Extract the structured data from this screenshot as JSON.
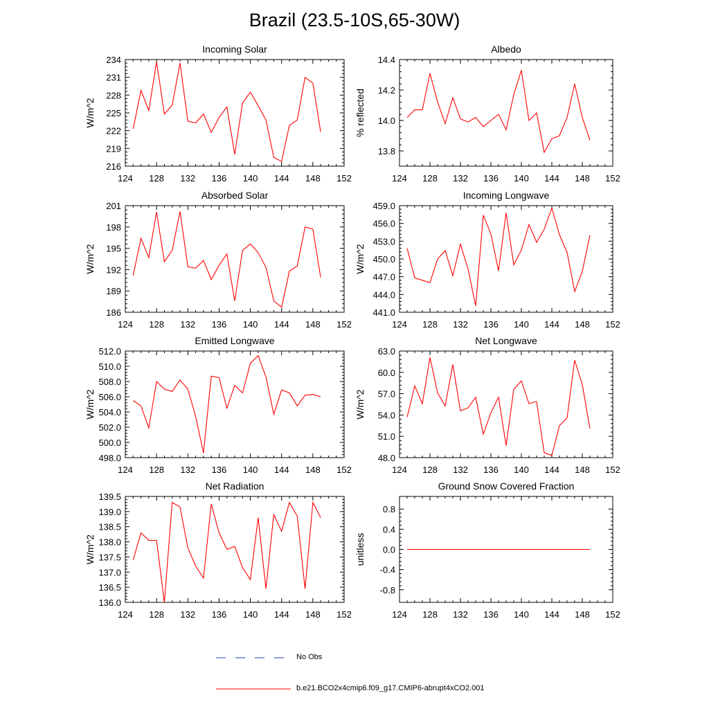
{
  "title": "Brazil (23.5-10S,65-30W)",
  "colors": {
    "model": "#ff0000",
    "obs": "#1f3fbf",
    "axis": "#000000"
  },
  "legend": {
    "obs_label": "No Obs",
    "model_label": "b.e21.BCO2x4cmip6.f09_g17.CMIP6-abrupt4xCO2.001"
  },
  "chart_data": [
    {
      "type": "line",
      "name": "incoming-solar",
      "title": "Incoming Solar",
      "ylabel": "W/m^2",
      "xlim": [
        124,
        152
      ],
      "xticks": [
        124,
        128,
        132,
        136,
        140,
        144,
        148,
        152
      ],
      "ylim": [
        216,
        234
      ],
      "yticks": [
        216,
        219,
        222,
        225,
        228,
        231,
        234
      ],
      "ydec": 0,
      "x": [
        125,
        126,
        127,
        128,
        129,
        130,
        131,
        132,
        133,
        134,
        135,
        136,
        137,
        138,
        139,
        140,
        141,
        142,
        143,
        144,
        145,
        146,
        147,
        148,
        149
      ],
      "values": [
        222.3,
        228.8,
        225.4,
        233.6,
        224.8,
        226.3,
        233.4,
        223.6,
        223.3,
        224.8,
        221.7,
        224.2,
        226.0,
        218.0,
        226.7,
        228.5,
        226.2,
        223.8,
        217.5,
        216.8,
        222.9,
        223.8,
        231.0,
        230.0,
        221.8
      ]
    },
    {
      "type": "line",
      "name": "albedo",
      "title": "Albedo",
      "ylabel": "% reflected",
      "xlim": [
        124,
        152
      ],
      "xticks": [
        124,
        128,
        132,
        136,
        140,
        144,
        148,
        152
      ],
      "ylim": [
        13.7,
        14.4
      ],
      "yticks": [
        13.8,
        14.0,
        14.2,
        14.4
      ],
      "ydec": 1,
      "x": [
        125,
        126,
        127,
        128,
        129,
        130,
        131,
        132,
        133,
        134,
        135,
        136,
        137,
        138,
        139,
        140,
        141,
        142,
        143,
        144,
        145,
        146,
        147,
        148,
        149
      ],
      "values": [
        14.02,
        14.07,
        14.07,
        14.31,
        14.12,
        13.98,
        14.15,
        14.01,
        13.99,
        14.02,
        13.96,
        14.0,
        14.04,
        13.94,
        14.17,
        14.33,
        14.0,
        14.05,
        13.79,
        13.88,
        13.9,
        14.02,
        14.24,
        14.02,
        13.87
      ]
    },
    {
      "type": "line",
      "name": "absorbed-solar",
      "title": "Absorbed Solar",
      "ylabel": "W/m^2",
      "xlim": [
        124,
        152
      ],
      "xticks": [
        124,
        128,
        132,
        136,
        140,
        144,
        148,
        152
      ],
      "ylim": [
        186,
        201
      ],
      "yticks": [
        186,
        189,
        192,
        195,
        198,
        201
      ],
      "ydec": 0,
      "x": [
        125,
        126,
        127,
        128,
        129,
        130,
        131,
        132,
        133,
        134,
        135,
        136,
        137,
        138,
        139,
        140,
        141,
        142,
        143,
        144,
        145,
        146,
        147,
        148,
        149
      ],
      "values": [
        191.2,
        196.4,
        193.7,
        200.1,
        193.1,
        194.7,
        200.2,
        192.4,
        192.2,
        193.3,
        190.6,
        192.6,
        194.2,
        187.6,
        194.7,
        195.6,
        194.4,
        192.3,
        187.6,
        186.7,
        191.8,
        192.5,
        198.0,
        197.7,
        190.9
      ]
    },
    {
      "type": "line",
      "name": "incoming-longwave",
      "title": "Incoming Longwave",
      "ylabel": "W/m^2",
      "xlim": [
        124,
        152
      ],
      "xticks": [
        124,
        128,
        132,
        136,
        140,
        144,
        148,
        152
      ],
      "ylim": [
        441,
        459
      ],
      "yticks": [
        441,
        444,
        447,
        450,
        453,
        456,
        459
      ],
      "ydec": 1,
      "x": [
        125,
        126,
        127,
        128,
        129,
        130,
        131,
        132,
        133,
        134,
        135,
        136,
        137,
        138,
        139,
        140,
        141,
        142,
        143,
        144,
        145,
        146,
        147,
        148,
        149
      ],
      "values": [
        451.8,
        446.8,
        446.4,
        446.0,
        450.0,
        451.4,
        447.2,
        452.5,
        448.3,
        442.1,
        457.4,
        454.2,
        448.0,
        457.8,
        449.0,
        451.5,
        455.8,
        452.8,
        455.0,
        458.6,
        454.1,
        451.1,
        444.5,
        447.9,
        454.0
      ]
    },
    {
      "type": "line",
      "name": "emitted-longwave",
      "title": "Emitted Longwave",
      "ylabel": "W/m^2",
      "xlim": [
        124,
        152
      ],
      "xticks": [
        124,
        128,
        132,
        136,
        140,
        144,
        148,
        152
      ],
      "ylim": [
        498,
        512
      ],
      "yticks": [
        498,
        500,
        502,
        504,
        506,
        508,
        510,
        512
      ],
      "ydec": 1,
      "x": [
        125,
        126,
        127,
        128,
        129,
        130,
        131,
        132,
        133,
        134,
        135,
        136,
        137,
        138,
        139,
        140,
        141,
        142,
        143,
        144,
        145,
        146,
        147,
        148,
        149
      ],
      "values": [
        505.5,
        504.8,
        501.9,
        508.0,
        507.0,
        506.7,
        508.2,
        507.0,
        503.4,
        498.6,
        508.7,
        508.5,
        504.5,
        507.5,
        506.5,
        510.4,
        511.4,
        508.6,
        503.7,
        506.9,
        506.5,
        504.8,
        506.2,
        506.3,
        506.0
      ]
    },
    {
      "type": "line",
      "name": "net-longwave",
      "title": "Net Longwave",
      "ylabel": "W/m^2",
      "xlim": [
        124,
        152
      ],
      "xticks": [
        124,
        128,
        132,
        136,
        140,
        144,
        148,
        152
      ],
      "ylim": [
        48,
        63
      ],
      "yticks": [
        48,
        51,
        54,
        57,
        60,
        63
      ],
      "ydec": 1,
      "x": [
        125,
        126,
        127,
        128,
        129,
        130,
        131,
        132,
        133,
        134,
        135,
        136,
        137,
        138,
        139,
        140,
        141,
        142,
        143,
        144,
        145,
        146,
        147,
        148,
        149
      ],
      "values": [
        53.7,
        58.1,
        55.6,
        62.1,
        57.1,
        55.3,
        61.1,
        54.6,
        55.0,
        56.5,
        51.3,
        54.3,
        56.5,
        49.7,
        57.6,
        58.8,
        55.6,
        55.9,
        48.7,
        48.3,
        52.5,
        53.6,
        61.7,
        58.3,
        52.1
      ]
    },
    {
      "type": "line",
      "name": "net-radiation",
      "title": "Net Radiation",
      "ylabel": "W/m^2",
      "xlim": [
        124,
        152
      ],
      "xticks": [
        124,
        128,
        132,
        136,
        140,
        144,
        148,
        152
      ],
      "ylim": [
        136,
        139.5
      ],
      "yticks": [
        136,
        136.5,
        137,
        137.5,
        138,
        138.5,
        139,
        139.5
      ],
      "ydec": 1,
      "x": [
        125,
        126,
        127,
        128,
        129,
        130,
        131,
        132,
        133,
        134,
        135,
        136,
        137,
        138,
        139,
        140,
        141,
        142,
        143,
        144,
        145,
        146,
        147,
        148,
        149
      ],
      "values": [
        137.4,
        138.3,
        138.05,
        138.05,
        136.0,
        139.3,
        139.15,
        137.8,
        137.2,
        136.8,
        139.25,
        138.3,
        137.75,
        137.85,
        137.15,
        136.75,
        138.8,
        136.45,
        138.9,
        138.35,
        139.3,
        138.85,
        136.45,
        139.3,
        138.8
      ]
    },
    {
      "type": "line",
      "name": "ground-snow-covered-fraction",
      "title": "Ground Snow Covered Fraction",
      "ylabel": "unitless",
      "xlim": [
        124,
        152
      ],
      "xticks": [
        124,
        128,
        132,
        136,
        140,
        144,
        148,
        152
      ],
      "ylim": [
        -1.05,
        1.05
      ],
      "yticks": [
        -0.8,
        -0.4,
        0.0,
        0.4,
        0.8
      ],
      "ydec": 1,
      "x": [
        125,
        126,
        127,
        128,
        129,
        130,
        131,
        132,
        133,
        134,
        135,
        136,
        137,
        138,
        139,
        140,
        141,
        142,
        143,
        144,
        145,
        146,
        147,
        148,
        149
      ],
      "values": [
        0,
        0,
        0,
        0,
        0,
        0,
        0,
        0,
        0,
        0,
        0,
        0,
        0,
        0,
        0,
        0,
        0,
        0,
        0,
        0,
        0,
        0,
        0,
        0,
        0
      ]
    }
  ]
}
